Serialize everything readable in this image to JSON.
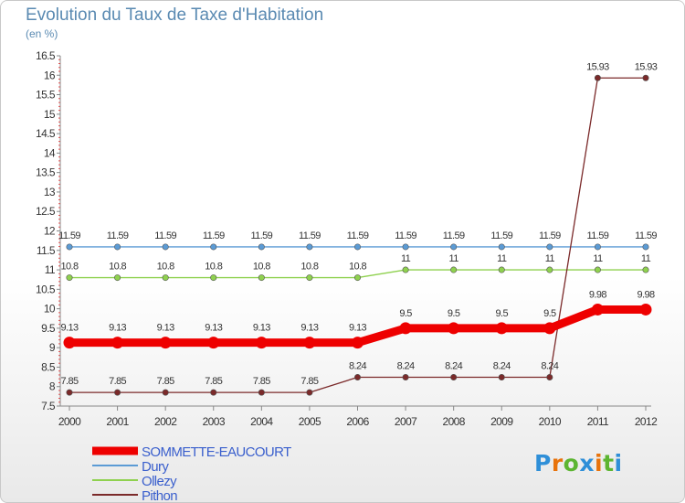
{
  "chart_data": {
    "type": "line",
    "title": "Evolution du Taux de Taxe d'Habitation",
    "subtitle": "(en %)",
    "x": [
      "2000",
      "2001",
      "2002",
      "2003",
      "2004",
      "2005",
      "2006",
      "2007",
      "2008",
      "2009",
      "2010",
      "2011",
      "2012"
    ],
    "ylim": [
      7.5,
      16.5
    ],
    "yticks": [
      "7.5",
      "8",
      "8.5",
      "9",
      "9.5",
      "10",
      "10.5",
      "11",
      "11.5",
      "12",
      "12.5",
      "13",
      "13.5",
      "14",
      "14.5",
      "15",
      "15.5",
      "16",
      "16.5"
    ],
    "series": [
      {
        "name": "SOMMETTE-EAUCOURT",
        "color": "#ee0000",
        "values": [
          9.13,
          9.13,
          9.13,
          9.13,
          9.13,
          9.13,
          9.13,
          9.5,
          9.5,
          9.5,
          9.5,
          9.98,
          9.98
        ],
        "labels": [
          "9.13",
          "9.13",
          "9.13",
          "9.13",
          "9.13",
          "9.13",
          "9.13",
          "9.5",
          "9.5",
          "9.5",
          "9.5",
          "9.98",
          "9.98"
        ]
      },
      {
        "name": "Dury",
        "color": "#5b9bd5",
        "values": [
          11.59,
          11.59,
          11.59,
          11.59,
          11.59,
          11.59,
          11.59,
          11.59,
          11.59,
          11.59,
          11.59,
          11.59,
          11.59
        ],
        "labels": [
          "11.59",
          "11.59",
          "11.59",
          "11.59",
          "11.59",
          "11.59",
          "11.59",
          "11.59",
          "11.59",
          "11.59",
          "11.59",
          "11.59",
          "11.59"
        ]
      },
      {
        "name": "Ollezy",
        "color": "#8fd14f",
        "values": [
          10.8,
          10.8,
          10.8,
          10.8,
          10.8,
          10.8,
          10.8,
          11,
          11,
          11,
          11,
          11,
          11
        ],
        "labels": [
          "10.8",
          "10.8",
          "10.8",
          "10.8",
          "10.8",
          "10.8",
          "10.8",
          "11",
          "11",
          "11",
          "11",
          "11",
          "11"
        ]
      },
      {
        "name": "Pithon",
        "color": "#7b2a2a",
        "values": [
          7.85,
          7.85,
          7.85,
          7.85,
          7.85,
          7.85,
          8.24,
          8.24,
          8.24,
          8.24,
          8.24,
          15.93,
          15.93
        ],
        "labels": [
          "7.85",
          "7.85",
          "7.85",
          "7.85",
          "7.85",
          "7.85",
          "8.24",
          "8.24",
          "8.24",
          "8.24",
          "8.24",
          "15.93",
          "15.93"
        ]
      }
    ],
    "legend": "bottom-left"
  },
  "branding": {
    "logo_letters": [
      "P",
      "r",
      "o",
      "x",
      "i",
      "t",
      "i"
    ],
    "logo_colors": [
      "#2f8fd8",
      "#e8730c",
      "#5cb531",
      "#2f8fd8",
      "#e8730c",
      "#5cb531",
      "#2f8fd8"
    ]
  }
}
